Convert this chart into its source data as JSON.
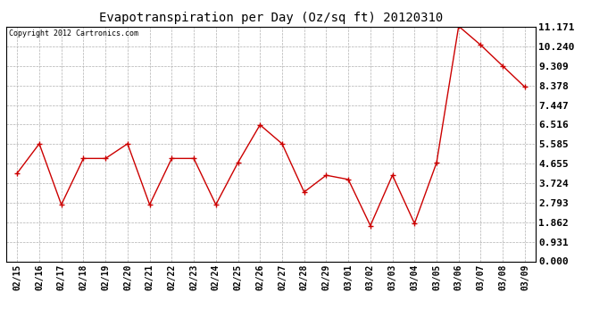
{
  "title": "Evapotranspiration per Day (Oz/sq ft) 20120310",
  "copyright": "Copyright 2012 Cartronics.com",
  "dates": [
    "02/15",
    "02/16",
    "02/17",
    "02/18",
    "02/19",
    "02/20",
    "02/21",
    "02/22",
    "02/23",
    "02/24",
    "02/25",
    "02/26",
    "02/27",
    "02/28",
    "02/29",
    "03/01",
    "03/02",
    "03/03",
    "03/04",
    "03/05",
    "03/06",
    "03/07",
    "03/08",
    "03/09"
  ],
  "values": [
    4.2,
    5.6,
    2.7,
    4.9,
    4.9,
    5.6,
    2.7,
    4.9,
    4.9,
    2.7,
    4.7,
    6.5,
    5.6,
    3.3,
    4.1,
    3.9,
    1.7,
    4.1,
    1.8,
    4.7,
    11.2,
    10.3,
    9.3,
    8.3
  ],
  "yticks": [
    0.0,
    0.931,
    1.862,
    2.793,
    3.724,
    4.655,
    5.585,
    6.516,
    7.447,
    8.378,
    9.309,
    10.24,
    11.171
  ],
  "ylim": [
    0.0,
    11.171
  ],
  "line_color": "#cc0000",
  "marker": "+",
  "marker_size": 4,
  "marker_color": "#cc0000",
  "background_color": "#ffffff",
  "plot_bg_color": "#ffffff",
  "grid_color": "#b0b0b0",
  "title_fontsize": 10,
  "copyright_fontsize": 6,
  "tick_fontsize": 7,
  "ytick_fontsize": 8
}
